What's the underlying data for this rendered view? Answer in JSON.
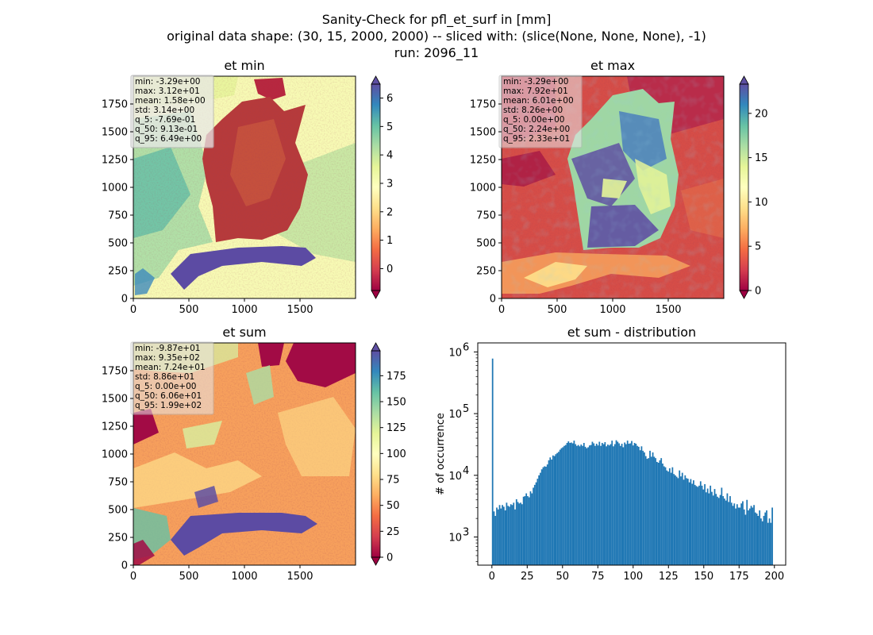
{
  "figure": {
    "title_lines": [
      "Sanity-Check for pfl_et_surf in [mm]",
      "original data shape: (30, 15, 2000, 2000) -- sliced with: (slice(None, None, None), -1)",
      "run: 2096_11"
    ]
  },
  "chart_data": [
    {
      "type": "heatmap",
      "title": "et min",
      "xlim": [
        0,
        2000
      ],
      "ylim": [
        0,
        2000
      ],
      "x_ticks": [
        "0",
        "500",
        "1000",
        "1500"
      ],
      "y_ticks": [
        "0",
        "250",
        "500",
        "750",
        "1000",
        "1250",
        "1500",
        "1750"
      ],
      "colormap": "Spectral",
      "colorbar": {
        "range": [
          -0.77,
          6.49
        ],
        "ticks": [
          "0",
          "1",
          "2",
          "3",
          "4",
          "5",
          "6"
        ],
        "extend": "both"
      },
      "stats": [
        "min: -3.29e+00",
        "max: 3.12e+01",
        "mean: 1.58e+00",
        "std: 3.14e+00",
        "q_5: -7.69e-01",
        "q_50: 9.13e-01",
        "q_95: 6.49e+00"
      ],
      "scene": "min"
    },
    {
      "type": "heatmap",
      "title": "et max",
      "xlim": [
        0,
        2000
      ],
      "ylim": [
        0,
        2000
      ],
      "x_ticks": [
        "0",
        "500",
        "1000",
        "1500"
      ],
      "y_ticks": [
        "0",
        "250",
        "500",
        "750",
        "1000",
        "1250",
        "1500",
        "1750"
      ],
      "colormap": "Spectral",
      "colorbar": {
        "range": [
          0,
          23.3
        ],
        "ticks": [
          "0",
          "5",
          "10",
          "15",
          "20"
        ],
        "extend": "both"
      },
      "stats": [
        "min: -3.29e+00",
        "max: 7.92e+01",
        "mean: 6.01e+00",
        "std: 8.26e+00",
        "q_5: 0.00e+00",
        "q_50: 2.24e+00",
        "q_95: 2.33e+01"
      ],
      "scene": "max"
    },
    {
      "type": "heatmap",
      "title": "et sum",
      "xlim": [
        0,
        2000
      ],
      "ylim": [
        0,
        2000
      ],
      "x_ticks": [
        "0",
        "500",
        "1000",
        "1500"
      ],
      "y_ticks": [
        "0",
        "250",
        "500",
        "750",
        "1000",
        "1250",
        "1500",
        "1750"
      ],
      "colormap": "Spectral",
      "colorbar": {
        "range": [
          0,
          199
        ],
        "ticks": [
          "0",
          "25",
          "50",
          "75",
          "100",
          "125",
          "150",
          "175"
        ],
        "extend": "both"
      },
      "stats": [
        "min: -9.87e+01",
        "max: 9.35e+02",
        "mean: 7.24e+01",
        "std: 8.86e+01",
        "q_5: 0.00e+00",
        "q_50: 6.06e+01",
        "q_95: 1.99e+02"
      ],
      "scene": "sum"
    },
    {
      "type": "bar",
      "subtype": "histogram",
      "title": "et sum - distribution",
      "xlabel": "",
      "ylabel": "# of occurrence",
      "yscale": "log",
      "xlim": [
        -10,
        208
      ],
      "ylim": [
        350,
        1400000
      ],
      "x_ticks": [
        "0",
        "25",
        "50",
        "75",
        "100",
        "125",
        "150",
        "175",
        "200"
      ],
      "y_ticks": [
        {
          "base": "10",
          "exp": "3"
        },
        {
          "base": "10",
          "exp": "4"
        },
        {
          "base": "10",
          "exp": "5"
        },
        {
          "base": "10",
          "exp": "6"
        }
      ],
      "color": "#1f77b4",
      "bin_edges_range": [
        0,
        199
      ],
      "bins": 200,
      "counts": [
        780000,
        2600,
        2200,
        3000,
        2800,
        3300,
        2900,
        3300,
        3100,
        2700,
        3600,
        3200,
        3100,
        3400,
        3300,
        3600,
        2800,
        4100,
        3700,
        3500,
        3600,
        3400,
        4500,
        4600,
        5100,
        4600,
        4400,
        5500,
        5100,
        6300,
        7000,
        7700,
        8800,
        10000,
        11000,
        12500,
        13500,
        14000,
        13800,
        15000,
        17500,
        19500,
        18000,
        21000,
        20500,
        22000,
        23000,
        24000,
        26000,
        27500,
        28500,
        30000,
        31000,
        33500,
        35500,
        33500,
        34000,
        33000,
        36500,
        32000,
        30000,
        31000,
        29500,
        31500,
        30000,
        33500,
        29000,
        27500,
        28500,
        30500,
        31000,
        35000,
        33000,
        30000,
        32500,
        30500,
        35000,
        30000,
        33500,
        32000,
        34500,
        29500,
        31500,
        30500,
        32000,
        36500,
        29500,
        32000,
        37000,
        35000,
        33000,
        30000,
        32500,
        28500,
        34000,
        32000,
        36500,
        32500,
        33000,
        36000,
        30500,
        33500,
        32500,
        30000,
        29000,
        25500,
        29500,
        25000,
        23500,
        20500,
        18500,
        19000,
        25000,
        20000,
        23500,
        20000,
        19000,
        16500,
        16000,
        17500,
        19000,
        15500,
        14000,
        13500,
        12000,
        11500,
        13000,
        11000,
        13500,
        10500,
        10000,
        9500,
        9000,
        12000,
        9600,
        11000,
        8500,
        10000,
        9000,
        8800,
        7700,
        8700,
        7300,
        8300,
        7000,
        6700,
        6500,
        6800,
        8000,
        6800,
        5900,
        7200,
        5300,
        6100,
        5100,
        6800,
        5400,
        4700,
        6000,
        5000,
        4500,
        4300,
        4800,
        6300,
        4600,
        4200,
        3900,
        5100,
        3700,
        4600,
        3600,
        3200,
        3500,
        2900,
        3400,
        3000,
        3000,
        3500,
        3800,
        2800,
        2300,
        4000,
        2700,
        2900,
        3200,
        3000,
        3300,
        2500,
        2400,
        2200,
        2700,
        2000,
        1800,
        2200,
        2500,
        2700,
        1700,
        2000,
        1700,
        3000
      ]
    }
  ]
}
